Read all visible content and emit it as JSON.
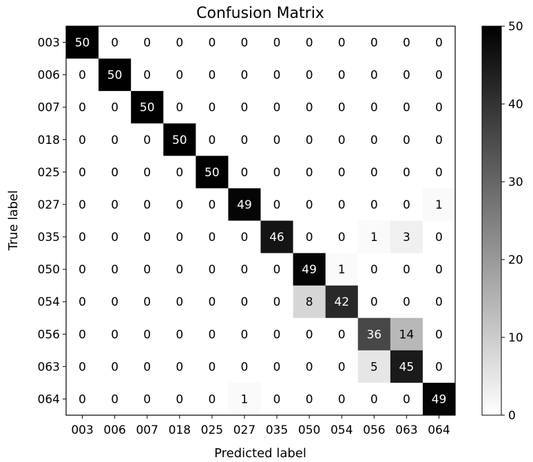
{
  "chart_data": {
    "type": "heatmap",
    "title": "Confusion Matrix",
    "xlabel": "Predicted label",
    "ylabel": "True label",
    "x_categories": [
      "003",
      "006",
      "007",
      "018",
      "025",
      "027",
      "035",
      "050",
      "054",
      "056",
      "063",
      "064"
    ],
    "y_categories": [
      "003",
      "006",
      "007",
      "018",
      "025",
      "027",
      "035",
      "050",
      "054",
      "056",
      "063",
      "064"
    ],
    "values": [
      [
        50,
        0,
        0,
        0,
        0,
        0,
        0,
        0,
        0,
        0,
        0,
        0
      ],
      [
        0,
        50,
        0,
        0,
        0,
        0,
        0,
        0,
        0,
        0,
        0,
        0
      ],
      [
        0,
        0,
        50,
        0,
        0,
        0,
        0,
        0,
        0,
        0,
        0,
        0
      ],
      [
        0,
        0,
        0,
        50,
        0,
        0,
        0,
        0,
        0,
        0,
        0,
        0
      ],
      [
        0,
        0,
        0,
        0,
        50,
        0,
        0,
        0,
        0,
        0,
        0,
        0
      ],
      [
        0,
        0,
        0,
        0,
        0,
        49,
        0,
        0,
        0,
        0,
        0,
        1
      ],
      [
        0,
        0,
        0,
        0,
        0,
        0,
        46,
        0,
        0,
        1,
        3,
        0
      ],
      [
        0,
        0,
        0,
        0,
        0,
        0,
        0,
        49,
        1,
        0,
        0,
        0
      ],
      [
        0,
        0,
        0,
        0,
        0,
        0,
        0,
        8,
        42,
        0,
        0,
        0
      ],
      [
        0,
        0,
        0,
        0,
        0,
        0,
        0,
        0,
        0,
        36,
        14,
        0
      ],
      [
        0,
        0,
        0,
        0,
        0,
        0,
        0,
        0,
        0,
        5,
        45,
        0
      ],
      [
        0,
        0,
        0,
        0,
        0,
        1,
        0,
        0,
        0,
        0,
        0,
        49
      ]
    ],
    "colormap": "Greys",
    "vmin": 0,
    "vmax": 50,
    "colorbar_ticks": [
      0,
      10,
      20,
      30,
      40,
      50
    ],
    "grid": false,
    "colors": {
      "low": "#ffffff",
      "high": "#000000"
    }
  }
}
